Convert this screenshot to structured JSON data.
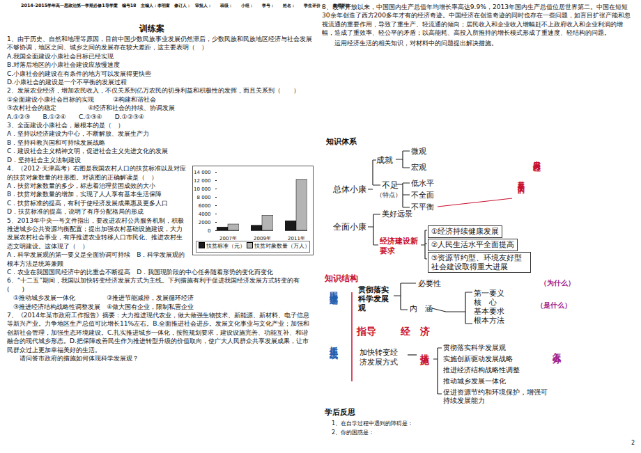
{
  "header": {
    "text": "2014-2015学年高一思政治第一学期必修1导学案　编号18　主编人：李明富　修订人：",
    "fields": [
      "审批人：",
      "班级：",
      "小组：",
      "学号：",
      "姓名：",
      "学生评价：",
      "教师评价："
    ]
  },
  "training": {
    "title": "训练案",
    "questions": [
      {
        "stem": "1、由于历史、自然和地理等原因，目前中国少数民族事业发展仍然滞后，少数民族和民族地区经济与社会发展不够协调，地区之间、城乡之间的发展存在较大差距，这主要表明（　）",
        "lines": [
          "A.我国全面建设小康社会目标已经实现",
          "B.对落后地区的小康社会建设应放慢速度",
          "C.小康社会的建设在有条件的地方可以发展得更快些",
          "D.小康社会的建设是一个不平衡的发展过程"
        ]
      },
      {
        "stem": "2、发展农业经济，增加农民收入，不仅关系到亿万农民的切身利益和积极性的发挥，而且关系到（　　）",
        "lines": [
          "①全面建设小康社会目标的实现　　　②构建和谐社会",
          "③农村社会的稳定　　　　　④经济和社会的持续、协调发展",
          "A.①②③　　B.①②④　　C.①③④　　D.①②③④"
        ]
      },
      {
        "stem": "3、全面建设小康社会，最根本的是（　）",
        "lines": [
          "A．坚持以经济建设为中心，不断解放、发展生产力",
          "B．坚持科教兴国和可持续发展战略",
          "C．建设社会主义精神文明，促进社会主义先进文化的发展",
          "D．坚持社会主义法制建设"
        ]
      },
      {
        "stem": "4、（2012·天津高考）右图是我国农村人口的扶贫标准以及对应的扶贫对象数量的柱形图。对该图的正确解读是（　）",
        "lines": [
          "A．扶贫对象数量的多少，标志着治理贫困成效的大小",
          "B．扶贫对象数量的增加，实现了人人享有基本生活保障",
          "C．扶贫标准的提高，有利于使经济发展成果惠及更多人口",
          "D．扶贫标准的提高，说明了有序分配格局的形成"
        ]
      },
      {
        "stem": "5、2013年中央一号文件指出，要改进农村公共服务机制，积极推进城乡公共资源均衡配置；提出加强农村基础设施建设，大力发展农村社会事业，有序推进农业转移人口市民化、推进农村生态文明建设。这体现了（　）",
        "lines": [
          "A．科学发展观的第一要义是全面协调可持续　B．科学发展观的根本方法是统筹兼顾",
          "C．农业在我国国民经济中的比重会不断提高　D．我国现阶段的中心任务随着形势的变化而变化"
        ]
      },
      {
        "stem": "6、“十二五”期间，我国以加快转变经济发展方式为主线。下列措施有利于促进我国经济发展方式转变的有(　　)",
        "lines": [
          "　①推动城乡发展一体化　　　　　②推进节能减排，发展循环经济",
          "　③推进经济结构战略性调整发展　④做大国有企业，限制私营企业"
        ]
      },
      {
        "stem": "7、《2014年某市政府工作报告》摘要：大力推进现代农业，做大做强生物技术、新能源、新材料、电子信息等新兴产业。力争地区生产总值可比增长11%左右。B.全面推进社会进步。发展文化事业与文化产业；加强和创新社会管理，加强生态环境建设。C.扎实推进城乡一体化，按照规划要求，建设设施完善、功能互补、和谐融合的现代城乡形态。D.把保障改善民生作为推进转型升级的价值取向，使广大人民群众共享发展成果，让市民群众过上更加幸福美好的生活。",
        "lines": [
          "　　请问答市政府的措施如何体现科学发展观？"
        ]
      }
    ]
  },
  "q8": {
    "stem": "8、改革开放以来，中国国内生产总值年均增长率高达9.9%，2013年国内生产总值位居世界第二。中国在短短30余年创造了西方200多年才有的经济奇迹。中国经济在创造奇迹的同时也存在一些问题，如盲目扩张产能和忽视流通的重要作用，导致了重生产、轻流通的倾向；居民收入和企业收入增幅赶不上政府收入和企业利润的增幅，造成了重效率、轻公平的矛盾；以高能耗、高投入所推持的增长模式形成了重速度、轻结构的问题。",
    "task": "运用经济生活的相关知识，对材料中的问题提出解决措施。"
  },
  "knowledge_system": {
    "title": "知识体系",
    "overall": "总体小康",
    "achievement": "成就",
    "achievement_items": [
      "微观",
      "宏观"
    ],
    "shortfall": "不足",
    "shortfall_note": "（特点）",
    "shortfall_items": [
      "低水平",
      "不全面",
      "不平衡"
    ],
    "process": "发展过程",
    "process_note": "是不平衡的",
    "comprehensive": "全面小康",
    "vision": "美好远景",
    "new_req": "经济建设新要求",
    "new_req_items": [
      "①经济持续健康发展",
      "②人民生活水平全面提高",
      "③资源节约型、环境友好型社会建设取得重大进展"
    ]
  },
  "knowledge_structure": {
    "title": "知识结构",
    "theme": "围绕主题",
    "mainline": "抓住主线",
    "sci": "贯彻落实科学发展观",
    "necessity": "必要性",
    "why": "（为什么）",
    "connotation": "内　涵",
    "connotation_items": [
      "第一要义",
      "核　心",
      "基本要求",
      "根本方法"
    ],
    "what": "（是什么）",
    "guide": "指导",
    "economy": "经　济",
    "transform": "加快转变经济发展方式",
    "measures": "措施",
    "measure_items": [
      "贯彻落实科学发展观",
      "实施创新驱动发展战略",
      "推进经济结构战略性调整",
      "推动城乡发展一体化",
      "促进资源节约和环境保护，增强可持续发展能力"
    ],
    "how": "怎么办"
  },
  "reflection": {
    "title": "学后反思",
    "items": [
      "1、在自学过程中遇到的障碍是：",
      "2、你的困惑是："
    ]
  },
  "page_number": "2",
  "chart_data": {
    "type": "bar",
    "categories": [
      "2007年",
      "2009年",
      "2011年"
    ],
    "series": [
      {
        "name": "扶贫标准（元）",
        "color": "#1a1a1a",
        "values": [
          800,
          1200,
          2300
        ]
      },
      {
        "name": "扶贫对象数量（万人）",
        "color": "#b4b4b4",
        "values": [
          1500,
          3600,
          12200
        ]
      }
    ],
    "ylim": [
      0,
      14000
    ],
    "yticks": [
      0,
      2000,
      4000,
      6000,
      {
        "value": 8000,
        "label": "8 000"
      },
      {
        "value": 10000,
        "label": "10 000"
      },
      {
        "value": 12000,
        "label": "12 000"
      },
      {
        "value": 14000,
        "label": "14 000"
      }
    ],
    "grid": false,
    "legend": "bottom"
  }
}
